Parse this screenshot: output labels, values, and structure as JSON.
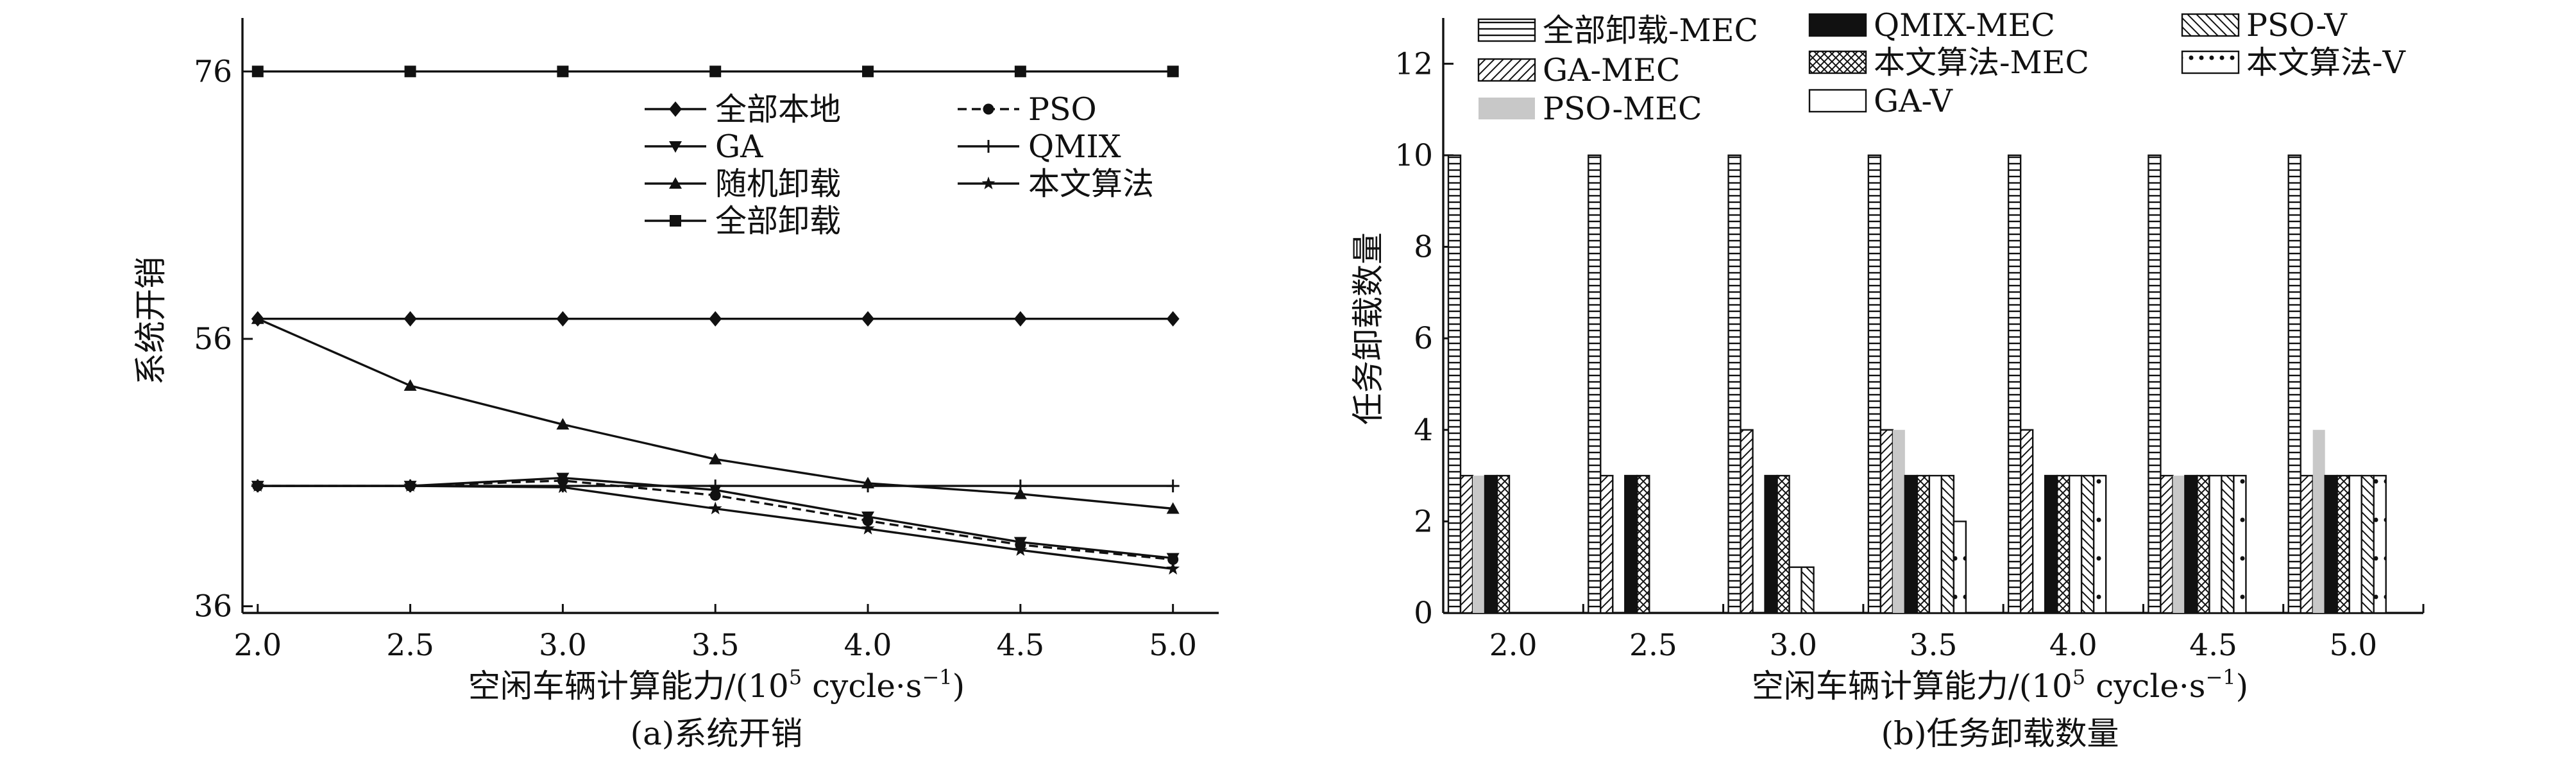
{
  "figure": {
    "caption_a": "(a)系统开销",
    "caption_b": "(b)任务卸载数量"
  },
  "chart_data": [
    {
      "type": "line",
      "xlabel_prefix": "空闲车辆计算能力/(10",
      "xlabel_sup1": "5",
      "xlabel_mid": " cycle·s",
      "xlabel_sup2": "−1",
      "xlabel_suffix": ")",
      "ylabel": "系统开销",
      "x": [
        2.0,
        2.5,
        3.0,
        3.5,
        4.0,
        4.5,
        5.0
      ],
      "x_tick_labels": [
        "2.0",
        "2.5",
        "3.0",
        "3.5",
        "4.0",
        "4.5",
        "5.0"
      ],
      "xlim": [
        1.95,
        5.15
      ],
      "ylim": [
        35.5,
        80.0
      ],
      "y_ticks": [
        36,
        56,
        76
      ],
      "grid": false,
      "legend_position": "top-center",
      "series": [
        {
          "name": "全部本地",
          "marker": "diamond",
          "dash": "solid",
          "values": [
            57.5,
            57.5,
            57.5,
            57.5,
            57.5,
            57.5,
            57.5
          ]
        },
        {
          "name": "GA",
          "marker": "triangle-down",
          "dash": "solid",
          "values": [
            45.0,
            45.0,
            45.6,
            44.7,
            42.7,
            40.8,
            39.6
          ]
        },
        {
          "name": "随机卸载",
          "marker": "triangle-up",
          "dash": "solid",
          "values": [
            57.5,
            52.5,
            49.6,
            47.0,
            45.2,
            44.4,
            43.3
          ]
        },
        {
          "name": "全部卸载",
          "marker": "square",
          "dash": "solid",
          "values": [
            76.0,
            76.0,
            76.0,
            76.0,
            76.0,
            76.0,
            76.0
          ]
        },
        {
          "name": "PSO",
          "marker": "circle",
          "dash": "dashed",
          "values": [
            45.0,
            45.0,
            45.4,
            44.3,
            42.4,
            40.6,
            39.5
          ]
        },
        {
          "name": "QMIX",
          "marker": "plus",
          "dash": "solid",
          "values": [
            45.0,
            45.0,
            45.0,
            45.0,
            45.0,
            45.0,
            45.0
          ]
        },
        {
          "name": "本文算法",
          "marker": "star",
          "dash": "solid",
          "values": [
            45.0,
            45.0,
            44.9,
            43.3,
            41.8,
            40.2,
            38.8
          ]
        }
      ]
    },
    {
      "type": "bar",
      "xlabel_prefix": "空闲车辆计算能力/(10",
      "xlabel_sup1": "5",
      "xlabel_mid": " cycle·s",
      "xlabel_sup2": "−1",
      "xlabel_suffix": ")",
      "ylabel": "任务卸载数量",
      "categories": [
        "2.0",
        "2.5",
        "3.0",
        "3.5",
        "4.0",
        "4.5",
        "5.0"
      ],
      "ylim": [
        0,
        13
      ],
      "y_ticks": [
        0,
        2,
        4,
        6,
        8,
        10,
        12
      ],
      "y_tick_labels": [
        "0",
        "2",
        "4",
        "6",
        "8",
        "10",
        "12"
      ],
      "grid": false,
      "legend_position": "top",
      "series": [
        {
          "name": "全部卸载-MEC",
          "pattern": "hlines",
          "values": [
            10,
            10,
            10,
            10,
            10,
            10,
            10
          ]
        },
        {
          "name": "GA-MEC",
          "pattern": "diag",
          "values": [
            3,
            3,
            4,
            4,
            4,
            3,
            3
          ]
        },
        {
          "name": "PSO-MEC",
          "pattern": "gray",
          "values": [
            3,
            0,
            0,
            4,
            0,
            3,
            4
          ]
        },
        {
          "name": "QMIX-MEC",
          "pattern": "black",
          "values": [
            3,
            3,
            3,
            3,
            3,
            3,
            3
          ]
        },
        {
          "name": "本文算法-MEC",
          "pattern": "cross",
          "values": [
            3,
            3,
            3,
            3,
            3,
            3,
            3
          ]
        },
        {
          "name": "GA-V",
          "pattern": "white",
          "values": [
            0,
            0,
            1,
            3,
            3,
            3,
            3
          ]
        },
        {
          "name": "PSO-V",
          "pattern": "backdiag",
          "values": [
            0,
            0,
            1,
            3,
            3,
            3,
            3
          ]
        },
        {
          "name": "本文算法-V",
          "pattern": "dots",
          "values": [
            0,
            0,
            0,
            2,
            3,
            3,
            3
          ]
        }
      ]
    }
  ]
}
